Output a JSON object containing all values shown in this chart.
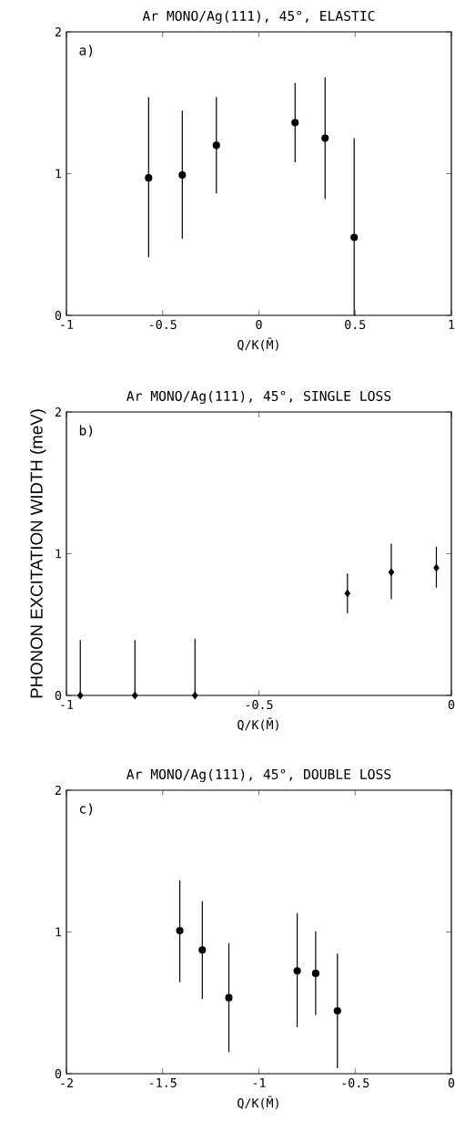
{
  "chart_data": [
    {
      "type": "scatter",
      "title": "Ar MONO/Ag(111), 45°, ELASTIC",
      "xlabel": "Q/K(M̄)",
      "annotations": [
        "a)"
      ],
      "x": [
        -0.573,
        -0.398,
        -0.221,
        0.188,
        0.344,
        0.495
      ],
      "series": [
        {
          "color": "#000000",
          "values": [
            0.97,
            0.99,
            1.2,
            1.36,
            1.25,
            0.55
          ],
          "errors": [
            [
              0.41,
              1.54
            ],
            [
              0.54,
              1.445
            ],
            [
              0.86,
              1.54
            ],
            [
              1.08,
              1.64
            ],
            [
              0.82,
              1.68
            ],
            [
              0,
              1.25
            ]
          ]
        }
      ],
      "xlim": [
        -1,
        1
      ],
      "xticks": [
        -1,
        -0.5,
        0,
        0.5,
        1
      ],
      "ylim": [
        0,
        2
      ],
      "yticks": [
        0,
        1,
        2
      ],
      "marker": "circle"
    },
    {
      "type": "scatter",
      "title": "Ar MONO/Ag(111), 45°, SINGLE LOSS",
      "xlabel": "Q/K(M̄)",
      "ylabel": "PHONON EXCITATION WIDTH (meV)",
      "annotations": [
        "b)"
      ],
      "x": [
        -0.964,
        -0.822,
        -0.666,
        -0.27,
        -0.156,
        -0.039
      ],
      "series": [
        {
          "color": "#000000",
          "values": [
            0,
            0,
            0,
            0.72,
            0.87,
            0.9
          ],
          "errors": [
            [
              0,
              0.39
            ],
            [
              0,
              0.39
            ],
            [
              0,
              0.4
            ],
            [
              0.58,
              0.86
            ],
            [
              0.68,
              1.07
            ],
            [
              0.76,
              1.05
            ]
          ]
        }
      ],
      "xlim": [
        -1,
        0
      ],
      "xticks": [
        -1,
        -0.5,
        0
      ],
      "ylim": [
        0,
        2
      ],
      "yticks": [
        0,
        1,
        2
      ],
      "marker": "diamond"
    },
    {
      "type": "scatter",
      "title": "Ar MONO/Ag(111), 45°, DOUBLE LOSS",
      "xlabel": "Q/K(M̄)",
      "annotations": [
        "c)"
      ],
      "x": [
        -1.411,
        -1.294,
        -1.156,
        -0.801,
        -0.705,
        -0.592
      ],
      "series": [
        {
          "color": "#000000",
          "values": [
            1.01,
            0.873,
            0.536,
            0.725,
            0.708,
            0.444
          ],
          "errors": [
            [
              0.646,
              1.365
            ],
            [
              0.526,
              1.217
            ],
            [
              0.152,
              0.921
            ],
            [
              0.328,
              1.133
            ],
            [
              0.414,
              1.004
            ],
            [
              0.039,
              0.848
            ]
          ]
        }
      ],
      "xlim": [
        -2,
        0
      ],
      "xticks": [
        -2,
        -1.5,
        -1,
        -0.5,
        0
      ],
      "ylim": [
        0,
        2
      ],
      "yticks": [
        0,
        1,
        2
      ],
      "marker": "circle"
    }
  ]
}
